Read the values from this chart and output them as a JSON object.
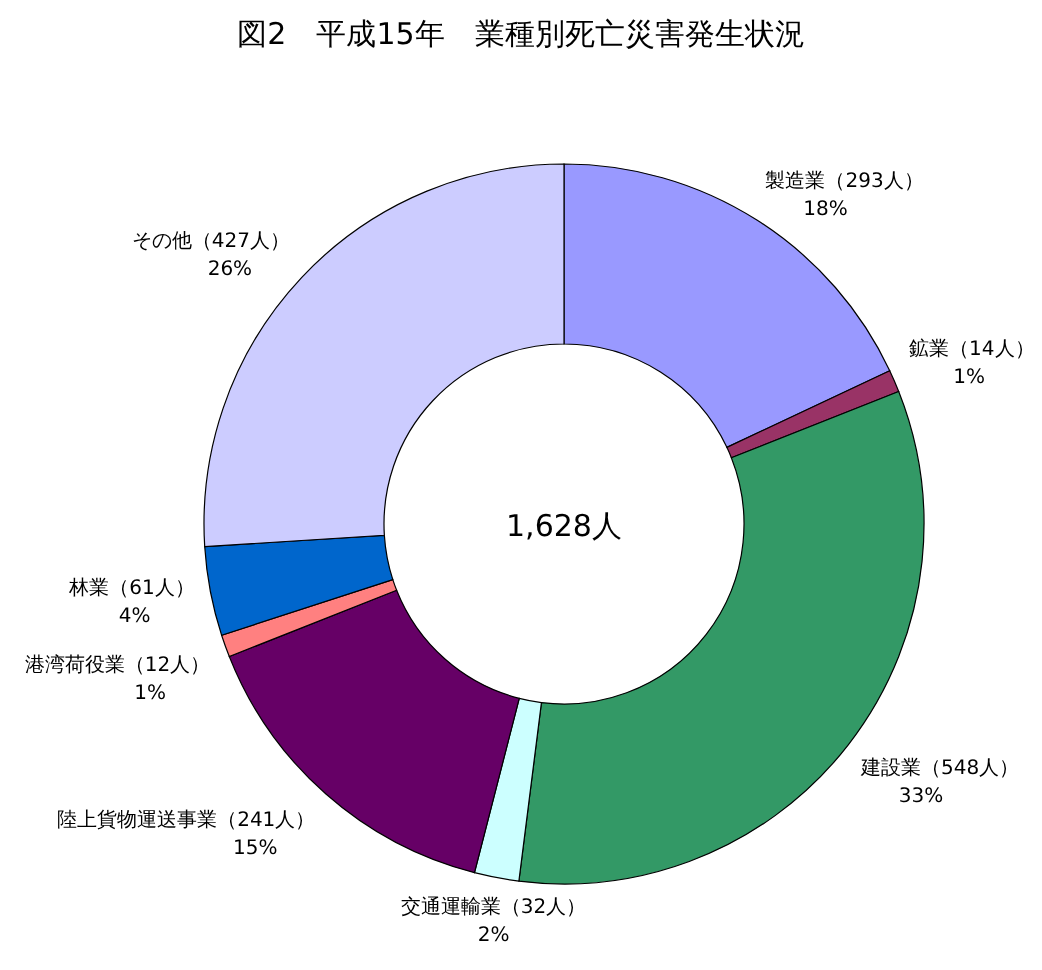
{
  "chart_data": {
    "type": "donut",
    "title": "図2　平成15年　業種別死亡災害発生状況",
    "categories": [
      "製造業（293人）",
      "鉱業（14人）",
      "建設業（548人）",
      "交通運輸業（32人）",
      "陸上貨物運送事業（241人）",
      "港湾荷役業（12人）",
      "林業（61人）",
      "その他（427人）"
    ],
    "values": [
      18,
      1,
      33,
      2,
      15,
      1,
      4,
      26
    ],
    "value_labels": [
      "18%",
      "1%",
      "33%",
      "2%",
      "15%",
      "1%",
      "4%",
      "26%"
    ],
    "colors": [
      "#9999ff",
      "#993366",
      "#339966",
      "#ccffff",
      "#660066",
      "#ff8080",
      "#0066cc",
      "#ccccff"
    ],
    "annotations": [
      "1,628人"
    ]
  }
}
